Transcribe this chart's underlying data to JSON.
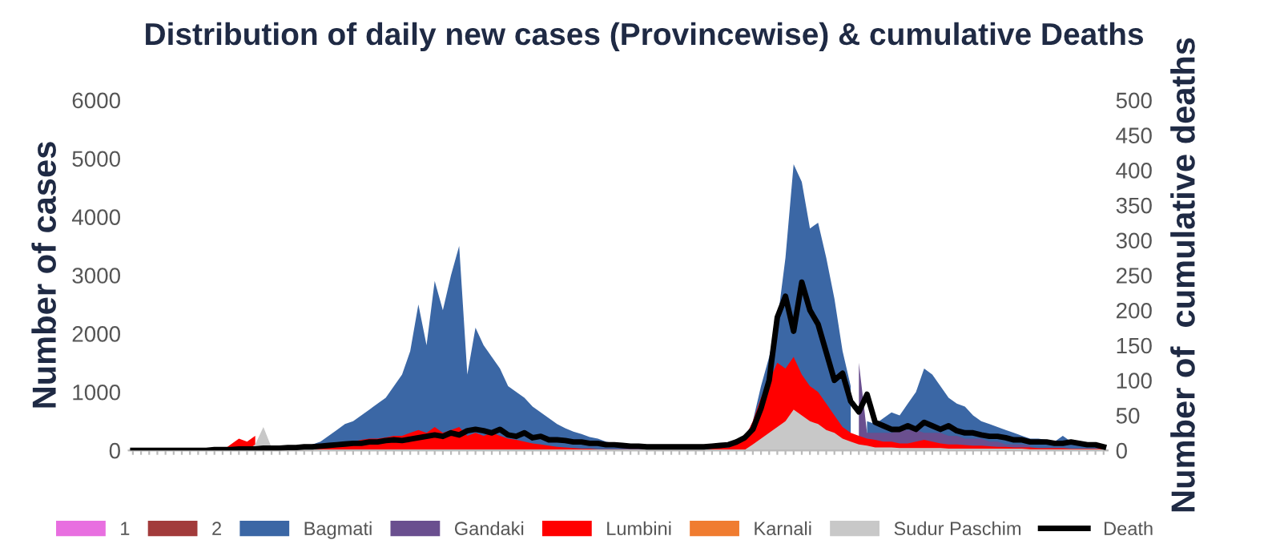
{
  "chart_data": {
    "type": "area",
    "title": "Distribution of daily new cases (Provincewise) & cumulative Deaths",
    "ylabel": "Number of cases",
    "y2label": "Number of  cumulative deaths",
    "categories": [
      null,
      null,
      null,
      null,
      null,
      null,
      null,
      null,
      null,
      null,
      null,
      null,
      null,
      null,
      null,
      null,
      null,
      null,
      null,
      null,
      null,
      null,
      null,
      null,
      null,
      null,
      null,
      null,
      null,
      null,
      null,
      null,
      null,
      null,
      null,
      null,
      null,
      null,
      null,
      null,
      null,
      null,
      null,
      null,
      null,
      null,
      null,
      null,
      null,
      null,
      null,
      null,
      null,
      null,
      null,
      null,
      null,
      null,
      null,
      null,
      null,
      null,
      null,
      null,
      null,
      null,
      null,
      null,
      null,
      null,
      null,
      null,
      null,
      null,
      null,
      null,
      null,
      null,
      null,
      null,
      null,
      null,
      null,
      null,
      null,
      null,
      null,
      null,
      null,
      null,
      null,
      null,
      null,
      null,
      null,
      null,
      null,
      null,
      null,
      null,
      null,
      null,
      null,
      null,
      null,
      null,
      null,
      null,
      null,
      null,
      null,
      null,
      null,
      null,
      null,
      null,
      null,
      null,
      null,
      null
    ],
    "ylim": [
      0,
      6000
    ],
    "yticks": [
      0,
      1000,
      2000,
      3000,
      4000,
      5000,
      6000
    ],
    "y2lim": [
      0,
      500
    ],
    "y2ticks": [
      0,
      50,
      100,
      150,
      200,
      250,
      300,
      350,
      400,
      450,
      500
    ],
    "tick_labels": "y",
    "legend": "bottom",
    "grid": false,
    "series": [
      {
        "name": "1",
        "color": "#e86fe0",
        "values": [
          null,
          null,
          null,
          null,
          null,
          null,
          null,
          null,
          null,
          null,
          null,
          null,
          null,
          null,
          null,
          null,
          null,
          null,
          null,
          null,
          null,
          null,
          null,
          null,
          null,
          null,
          null,
          null,
          null,
          null,
          null,
          null,
          null,
          null,
          null,
          null,
          null,
          null,
          null,
          null,
          null,
          null,
          null,
          null,
          null,
          null,
          null,
          null,
          null,
          null,
          null,
          null,
          null,
          null,
          null,
          null,
          null,
          null,
          null,
          null,
          null,
          null,
          null,
          null,
          null,
          null,
          null,
          null,
          null,
          null,
          null,
          null,
          null,
          null,
          null,
          null,
          null,
          null,
          null,
          null,
          null,
          null,
          null,
          null,
          null,
          null,
          null,
          null,
          null,
          null,
          null,
          null,
          null,
          null,
          null,
          null,
          null,
          null,
          null,
          null,
          null,
          null,
          null,
          null,
          null,
          null,
          null,
          null,
          null,
          null,
          null,
          null,
          null,
          null,
          null,
          null,
          null,
          null,
          null,
          null
        ]
      },
      {
        "name": "2",
        "color": "#a23b3b",
        "values": [
          null,
          null,
          null,
          null,
          null,
          null,
          null,
          null,
          null,
          null,
          null,
          null,
          null,
          null,
          null,
          null,
          null,
          null,
          null,
          null,
          null,
          null,
          null,
          null,
          null,
          null,
          null,
          null,
          null,
          null,
          null,
          null,
          null,
          null,
          null,
          null,
          null,
          null,
          null,
          null,
          null,
          null,
          null,
          null,
          null,
          null,
          null,
          null,
          null,
          null,
          null,
          null,
          null,
          null,
          null,
          null,
          null,
          null,
          null,
          null,
          null,
          null,
          null,
          null,
          null,
          null,
          null,
          null,
          null,
          null,
          null,
          null,
          null,
          null,
          null,
          null,
          null,
          null,
          null,
          null,
          null,
          null,
          null,
          null,
          null,
          null,
          null,
          null,
          null,
          null,
          null,
          null,
          null,
          null,
          null,
          null,
          null,
          null,
          null,
          null,
          null,
          null,
          null,
          null,
          null,
          null,
          null,
          null,
          null,
          null,
          null,
          null,
          null,
          null,
          null,
          null,
          null,
          null,
          null,
          null
        ]
      },
      {
        "name": "Bagmati",
        "color": "#3b67a5",
        "values": [
          0,
          0,
          0,
          0,
          0,
          0,
          0,
          0,
          0,
          0,
          0,
          0,
          0,
          0,
          20,
          30,
          40,
          40,
          50,
          60,
          60,
          80,
          100,
          150,
          250,
          350,
          450,
          500,
          600,
          700,
          800,
          900,
          1100,
          1300,
          1700,
          2500,
          1800,
          2900,
          2400,
          3000,
          3500,
          1300,
          2100,
          1800,
          1600,
          1400,
          1100,
          1000,
          900,
          750,
          650,
          550,
          450,
          380,
          320,
          280,
          230,
          200,
          150,
          120,
          80,
          60,
          50,
          40,
          40,
          30,
          30,
          30,
          30,
          30,
          40,
          40,
          50,
          60,
          100,
          200,
          500,
          1100,
          1600,
          2200,
          3300,
          4900,
          4600,
          3800,
          3900,
          3300,
          2600,
          1700,
          1100,
          null,
          500,
          450,
          550,
          650,
          600,
          800,
          1000,
          1400,
          1300,
          1100,
          900,
          800,
          750,
          600,
          500,
          450,
          400,
          350,
          300,
          250,
          200,
          200,
          180,
          150,
          250,
          150,
          120,
          100,
          100,
          90
        ]
      },
      {
        "name": "Gandaki",
        "color": "#6a4f8f",
        "values": [
          null,
          null,
          null,
          null,
          null,
          null,
          null,
          null,
          null,
          null,
          null,
          null,
          null,
          null,
          null,
          null,
          null,
          null,
          null,
          null,
          null,
          null,
          null,
          null,
          null,
          null,
          null,
          null,
          null,
          null,
          null,
          null,
          null,
          null,
          null,
          null,
          null,
          null,
          null,
          null,
          null,
          null,
          null,
          null,
          null,
          null,
          null,
          null,
          null,
          null,
          null,
          null,
          null,
          null,
          null,
          null,
          null,
          null,
          null,
          null,
          null,
          null,
          null,
          null,
          null,
          null,
          null,
          null,
          null,
          null,
          null,
          null,
          null,
          null,
          null,
          null,
          null,
          null,
          null,
          null,
          null,
          null,
          null,
          null,
          null,
          null,
          null,
          null,
          null,
          1500,
          300,
          300,
          300,
          300,
          350,
          350,
          350,
          300,
          300,
          300,
          250,
          250,
          200,
          200,
          200,
          150,
          150,
          100,
          100,
          100,
          80,
          null,
          null,
          null,
          null,
          null,
          null,
          null,
          null,
          null
        ]
      },
      {
        "name": "Lumbini",
        "color": "#ff0000",
        "values": [
          0,
          0,
          0,
          0,
          0,
          0,
          0,
          0,
          0,
          0,
          0,
          0,
          100,
          200,
          150,
          250,
          null,
          80,
          30,
          30,
          40,
          50,
          60,
          80,
          100,
          120,
          150,
          150,
          180,
          200,
          200,
          220,
          250,
          250,
          300,
          350,
          300,
          400,
          300,
          350,
          400,
          250,
          300,
          250,
          300,
          250,
          200,
          180,
          150,
          120,
          100,
          80,
          60,
          50,
          40,
          30,
          30,
          20,
          20,
          20,
          20,
          20,
          20,
          20,
          20,
          20,
          20,
          20,
          20,
          20,
          20,
          30,
          40,
          50,
          100,
          200,
          500,
          900,
          1200,
          1500,
          1400,
          1600,
          1300,
          1100,
          1000,
          800,
          600,
          400,
          300,
          250,
          200,
          180,
          150,
          150,
          120,
          120,
          150,
          180,
          150,
          120,
          100,
          100,
          90,
          80,
          80,
          70,
          60,
          60,
          50,
          50,
          50,
          40,
          40,
          40,
          40,
          30,
          30,
          30,
          30,
          30
        ]
      },
      {
        "name": "Karnali",
        "color": "#f07c30",
        "values": [
          null,
          null,
          null,
          null,
          null,
          null,
          null,
          null,
          null,
          null,
          null,
          null,
          null,
          null,
          null,
          null,
          null,
          null,
          null,
          null,
          null,
          null,
          null,
          null,
          null,
          null,
          null,
          null,
          null,
          null,
          null,
          null,
          null,
          null,
          null,
          null,
          null,
          null,
          null,
          null,
          null,
          null,
          null,
          null,
          null,
          null,
          null,
          null,
          null,
          null,
          null,
          null,
          null,
          null,
          null,
          null,
          null,
          null,
          null,
          null,
          null,
          null,
          null,
          null,
          null,
          null,
          null,
          null,
          null,
          null,
          null,
          null,
          null,
          null,
          null,
          null,
          null,
          null,
          null,
          null,
          null,
          null,
          null,
          null,
          null,
          null,
          null,
          null,
          null,
          null,
          null,
          null,
          null,
          null,
          null,
          null,
          null,
          null,
          null,
          null,
          null,
          null,
          null,
          null,
          null,
          null,
          null,
          null,
          null,
          null,
          null,
          null,
          null,
          null,
          null,
          null,
          null,
          null,
          null,
          null
        ]
      },
      {
        "name": "Sudur Paschim",
        "color": "#c8c8c8",
        "values": [
          0,
          0,
          0,
          0,
          0,
          0,
          0,
          0,
          0,
          0,
          0,
          0,
          0,
          0,
          0,
          100,
          400,
          50,
          10,
          10,
          10,
          10,
          10,
          10,
          10,
          10,
          10,
          10,
          10,
          10,
          10,
          10,
          10,
          10,
          10,
          10,
          10,
          10,
          10,
          10,
          10,
          10,
          10,
          10,
          10,
          10,
          10,
          10,
          10,
          10,
          10,
          10,
          10,
          10,
          10,
          10,
          10,
          10,
          10,
          10,
          10,
          10,
          10,
          10,
          10,
          10,
          10,
          10,
          10,
          10,
          10,
          10,
          10,
          10,
          10,
          10,
          100,
          200,
          300,
          400,
          500,
          700,
          600,
          500,
          450,
          350,
          300,
          200,
          150,
          100,
          80,
          50,
          50,
          50,
          40,
          40,
          40,
          40,
          40,
          40,
          30,
          30,
          30,
          30,
          30,
          30,
          30,
          30,
          30,
          30,
          20,
          20,
          20,
          20,
          20,
          20,
          20,
          20,
          20,
          20
        ]
      },
      {
        "name": "Death",
        "type": "line",
        "axis": "y2",
        "color": "#000000",
        "values": [
          0,
          0,
          0,
          0,
          0,
          0,
          0,
          0,
          0,
          0,
          1,
          1,
          1,
          2,
          2,
          2,
          3,
          3,
          3,
          4,
          4,
          5,
          5,
          6,
          7,
          8,
          9,
          10,
          10,
          12,
          12,
          14,
          15,
          14,
          16,
          18,
          20,
          22,
          20,
          25,
          22,
          28,
          30,
          28,
          25,
          30,
          22,
          20,
          25,
          18,
          20,
          15,
          15,
          14,
          12,
          12,
          10,
          10,
          8,
          8,
          7,
          6,
          6,
          5,
          5,
          5,
          5,
          5,
          5,
          5,
          5,
          6,
          7,
          8,
          12,
          18,
          30,
          60,
          100,
          190,
          220,
          170,
          240,
          200,
          180,
          140,
          100,
          110,
          70,
          55,
          80,
          40,
          35,
          30,
          30,
          35,
          30,
          40,
          35,
          30,
          35,
          28,
          25,
          25,
          22,
          20,
          20,
          18,
          15,
          15,
          12,
          12,
          12,
          10,
          10,
          12,
          10,
          8,
          8,
          5
        ]
      }
    ]
  }
}
